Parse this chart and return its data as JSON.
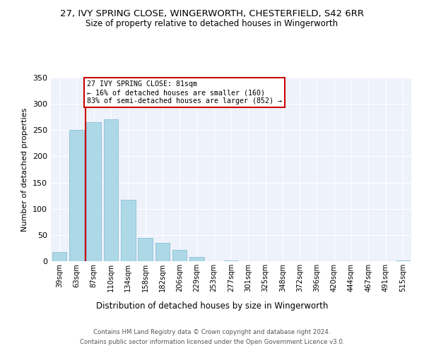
{
  "title_line1": "27, IVY SPRING CLOSE, WINGERWORTH, CHESTERFIELD, S42 6RR",
  "title_line2": "Size of property relative to detached houses in Wingerworth",
  "xlabel": "Distribution of detached houses by size in Wingerworth",
  "ylabel": "Number of detached properties",
  "bin_labels": [
    "39sqm",
    "63sqm",
    "87sqm",
    "110sqm",
    "134sqm",
    "158sqm",
    "182sqm",
    "206sqm",
    "229sqm",
    "253sqm",
    "277sqm",
    "301sqm",
    "325sqm",
    "348sqm",
    "372sqm",
    "396sqm",
    "420sqm",
    "444sqm",
    "467sqm",
    "491sqm",
    "515sqm"
  ],
  "bar_heights": [
    18,
    250,
    265,
    270,
    117,
    45,
    35,
    22,
    8,
    0,
    2,
    0,
    0,
    0,
    0,
    0,
    0,
    0,
    0,
    0,
    2
  ],
  "bar_color": "#add8e6",
  "bar_edgecolor": "#7ab8d4",
  "vline_color": "#cc0000",
  "annotation_title": "27 IVY SPRING CLOSE: 81sqm",
  "annotation_line2": "← 16% of detached houses are smaller (160)",
  "annotation_line3": "83% of semi-detached houses are larger (852) →",
  "annotation_box_color": "#ffffff",
  "annotation_box_edgecolor": "#cc0000",
  "ylim": [
    0,
    350
  ],
  "yticks": [
    0,
    50,
    100,
    150,
    200,
    250,
    300,
    350
  ],
  "background_color": "#ffffff",
  "plot_bg_color": "#eef2fb",
  "footer_line1": "Contains HM Land Registry data © Crown copyright and database right 2024.",
  "footer_line2": "Contains public sector information licensed under the Open Government Licence v3.0."
}
